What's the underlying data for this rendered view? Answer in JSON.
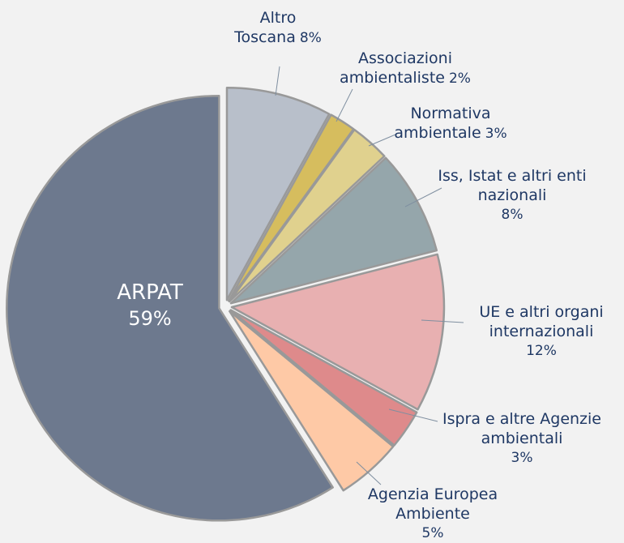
{
  "chart_data": {
    "type": "pie",
    "categories": [
      "Altro Toscana",
      "Associazioni ambientaliste",
      "Normativa ambientale",
      "Iss, Istat e altri enti nazionali",
      "UE e altri organi internazionali",
      "Ispra e altre Agenzie ambientali",
      "Agenzia Europea Ambiente",
      "ARPAT"
    ],
    "values": [
      8,
      2,
      3,
      8,
      12,
      3,
      5,
      59
    ],
    "value_labels": [
      "8%",
      "2%",
      "3%",
      "8%",
      "12%",
      "3%",
      "5%",
      "59%"
    ],
    "colors": [
      "#b8bfca",
      "#d6bd5e",
      "#e0d18e",
      "#95a6ab",
      "#e8b0b1",
      "#de8a8b",
      "#fec9a6",
      "#6d798e"
    ]
  }
}
